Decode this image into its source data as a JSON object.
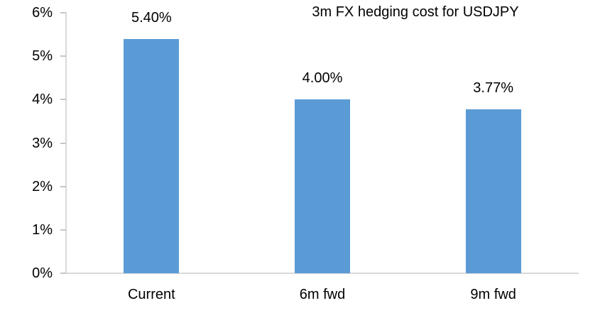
{
  "chart_data": {
    "type": "bar",
    "title": "3m FX hedging cost for USDJPY",
    "categories": [
      "Current",
      "6m fwd",
      "9m fwd"
    ],
    "values": [
      5.4,
      4.0,
      3.77
    ],
    "data_labels": [
      "5.40%",
      "4.00%",
      "3.77%"
    ],
    "xlabel": "",
    "ylabel": "",
    "ylim": [
      0,
      6
    ],
    "ytick_step": 1,
    "ytick_labels": [
      "0%",
      "1%",
      "2%",
      "3%",
      "4%",
      "5%",
      "6%"
    ],
    "grid": false,
    "legend_position": "none",
    "bar_color": "#5b9bd5",
    "axis_color": "#d9d9d9",
    "tick_color": "#c6c6c6",
    "text_color": "#000000"
  }
}
